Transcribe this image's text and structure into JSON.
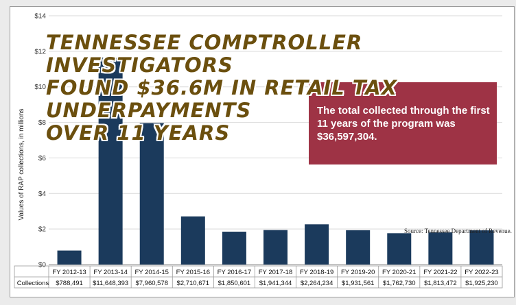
{
  "headline": {
    "lines": [
      "TENNESSEE COMPTROLLER INVESTIGATORS",
      "FOUND $36.6M IN RETAIL TAX",
      "UNDERPAYMENTS",
      "OVER 11 YEARS"
    ]
  },
  "callout": {
    "text": "The total collected through the first 11 years of the program was $36,597,304."
  },
  "source_note": "Source: Tennessee Department of Revenue.",
  "table": {
    "row_label": "Collections"
  },
  "colors": {
    "bar": "#1b3a5c",
    "callout_bg": "#9e3345",
    "headline": "#6b4f0e",
    "grid": "#d9d9d9"
  },
  "chart_data": {
    "type": "bar",
    "categories": [
      "FY 2012-13",
      "FY 2013-14",
      "FY 2014-15",
      "FY 2015-16",
      "FY 2016-17",
      "FY 2017-18",
      "FY 2018-19",
      "FY 2019-20",
      "FY 2020-21",
      "FY 2021-22",
      "FY 2022-23"
    ],
    "values": [
      788491,
      11648393,
      7960578,
      2710671,
      1850601,
      1941344,
      2264234,
      1931561,
      1762730,
      1813472,
      1925230
    ],
    "value_labels": [
      "$788,491",
      "$11,648,393",
      "$7,960,578",
      "$2,710,671",
      "$1,850,601",
      "$1,941,344",
      "$2,264,234",
      "$1,931,561",
      "$1,762,730",
      "$1,813,472",
      "$1,925,230"
    ],
    "ylabel": "Values of RAP collections, in millions",
    "ylim": [
      0,
      14
    ],
    "yticks": [
      0,
      2,
      4,
      6,
      8,
      10,
      12,
      14
    ],
    "ytick_labels": [
      "$0",
      "$2",
      "$4",
      "$6",
      "$8",
      "$10",
      "$12",
      "$14"
    ],
    "grid": true
  }
}
